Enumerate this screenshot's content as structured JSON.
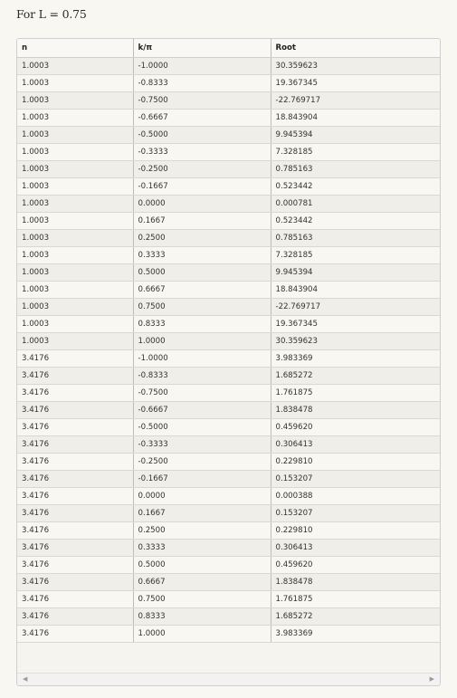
{
  "heading": "For L = 0.75",
  "table": {
    "headers": [
      "n",
      "k/π",
      "Root"
    ],
    "rows": [
      [
        "1.0003",
        "-1.0000",
        "30.359623"
      ],
      [
        "1.0003",
        "-0.8333",
        "19.367345"
      ],
      [
        "1.0003",
        "-0.7500",
        "-22.769717"
      ],
      [
        "1.0003",
        "-0.6667",
        "18.843904"
      ],
      [
        "1.0003",
        "-0.5000",
        "9.945394"
      ],
      [
        "1.0003",
        "-0.3333",
        "7.328185"
      ],
      [
        "1.0003",
        "-0.2500",
        "0.785163"
      ],
      [
        "1.0003",
        "-0.1667",
        "0.523442"
      ],
      [
        "1.0003",
        "0.0000",
        "0.000781"
      ],
      [
        "1.0003",
        "0.1667",
        "0.523442"
      ],
      [
        "1.0003",
        "0.2500",
        "0.785163"
      ],
      [
        "1.0003",
        "0.3333",
        "7.328185"
      ],
      [
        "1.0003",
        "0.5000",
        "9.945394"
      ],
      [
        "1.0003",
        "0.6667",
        "18.843904"
      ],
      [
        "1.0003",
        "0.7500",
        "-22.769717"
      ],
      [
        "1.0003",
        "0.8333",
        "19.367345"
      ],
      [
        "1.0003",
        "1.0000",
        "30.359623"
      ],
      [
        "3.4176",
        "-1.0000",
        "3.983369"
      ],
      [
        "3.4176",
        "-0.8333",
        "1.685272"
      ],
      [
        "3.4176",
        "-0.7500",
        "1.761875"
      ],
      [
        "3.4176",
        "-0.6667",
        "1.838478"
      ],
      [
        "3.4176",
        "-0.5000",
        "0.459620"
      ],
      [
        "3.4176",
        "-0.3333",
        "0.306413"
      ],
      [
        "3.4176",
        "-0.2500",
        "0.229810"
      ],
      [
        "3.4176",
        "-0.1667",
        "0.153207"
      ],
      [
        "3.4176",
        "0.0000",
        "0.000388"
      ],
      [
        "3.4176",
        "0.1667",
        "0.153207"
      ],
      [
        "3.4176",
        "0.2500",
        "0.229810"
      ],
      [
        "3.4176",
        "0.3333",
        "0.306413"
      ],
      [
        "3.4176",
        "0.5000",
        "0.459620"
      ],
      [
        "3.4176",
        "0.6667",
        "1.838478"
      ],
      [
        "3.4176",
        "0.7500",
        "1.761875"
      ],
      [
        "3.4176",
        "0.8333",
        "1.685272"
      ],
      [
        "3.4176",
        "1.0000",
        "3.983369"
      ]
    ]
  },
  "scrollbar": {
    "left_icon": "chevron-left-icon",
    "right_icon": "chevron-right-icon",
    "left_glyph": "◀",
    "right_glyph": "▶"
  }
}
